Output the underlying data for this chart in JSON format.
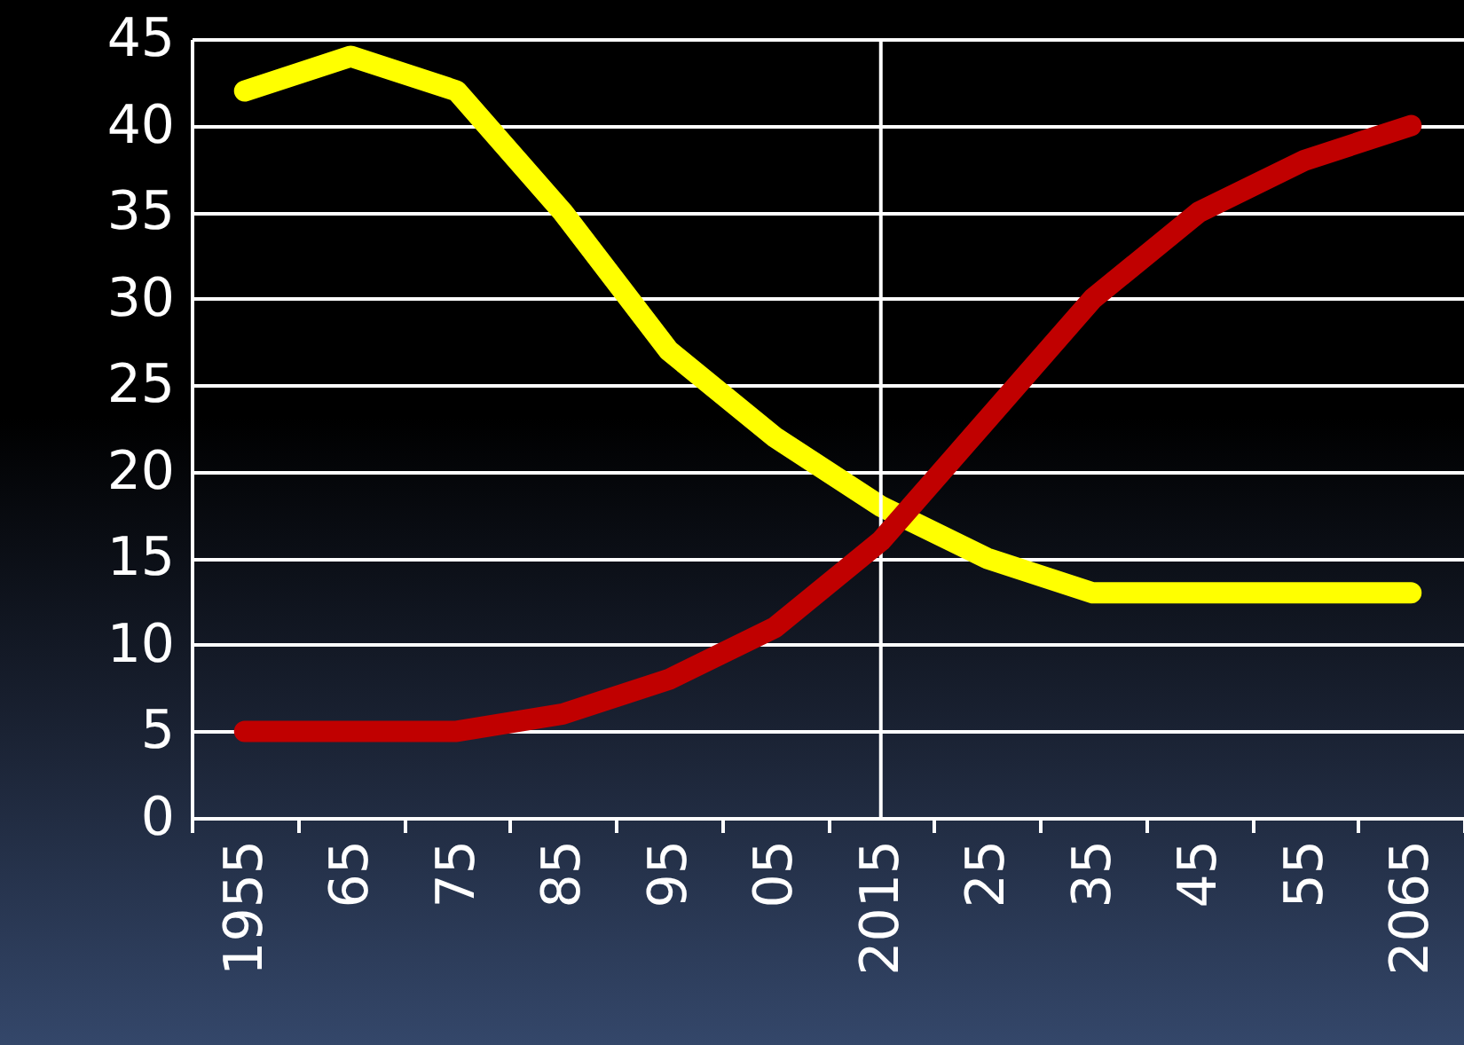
{
  "chart_data": {
    "type": "line",
    "categories": [
      "1955",
      "65",
      "75",
      "85",
      "95",
      "05",
      "2015",
      "25",
      "35",
      "45",
      "55",
      "2065"
    ],
    "series": [
      {
        "color": "#ffff00",
        "values": [
          42,
          44,
          42,
          35,
          27,
          22,
          18,
          15,
          13,
          13,
          13,
          13
        ]
      },
      {
        "color": "#c00000",
        "values": [
          5,
          5,
          5,
          6,
          8,
          11,
          16,
          23,
          30,
          35,
          38,
          40
        ]
      }
    ],
    "ylim": [
      0,
      45
    ],
    "yticks": [
      0,
      5,
      10,
      15,
      20,
      25,
      30,
      35,
      40,
      45
    ],
    "grid": "y",
    "marker": "none",
    "line_style": "solid",
    "ref_lines": [
      {
        "axis": "x",
        "value": "2015",
        "color": "#ffffff"
      }
    ]
  }
}
